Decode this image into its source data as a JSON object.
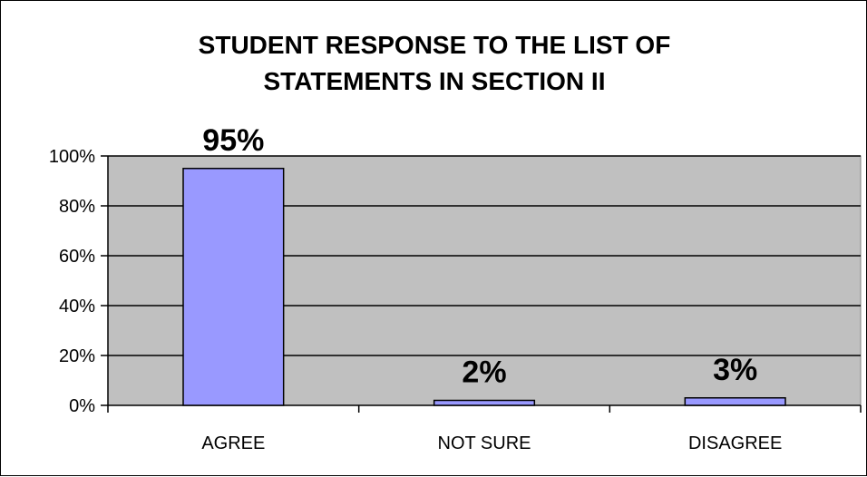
{
  "chart_data": {
    "type": "bar",
    "title_lines": [
      "STUDENT RESPONSE TO THE LIST OF",
      "STATEMENTS IN SECTION II"
    ],
    "categories": [
      "AGREE",
      "NOT SURE",
      "DISAGREE"
    ],
    "values": [
      95,
      2,
      3
    ],
    "data_labels": [
      "95%",
      "2%",
      "3%"
    ],
    "ylim": [
      0,
      100
    ],
    "yticks": [
      0,
      20,
      40,
      60,
      80,
      100
    ],
    "ytick_labels": [
      "0%",
      "20%",
      "40%",
      "60%",
      "80%",
      "100%"
    ],
    "xlabel": "",
    "ylabel": "",
    "grid": true,
    "legend": false,
    "colors": {
      "plot_bg": "#C0C0C0",
      "bar_fill": "#9999FF",
      "bar_stroke": "#000000",
      "grid": "#000000"
    }
  }
}
